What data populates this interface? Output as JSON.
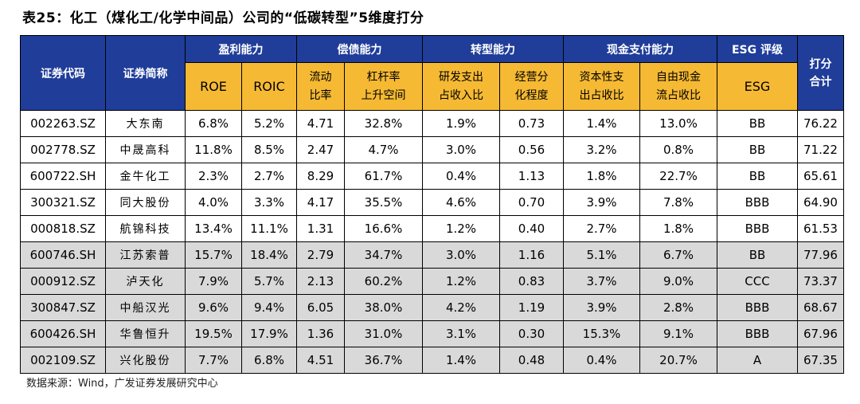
{
  "title": "表25：化工（煤化工/化学中间品）公司的“低碳转型”5维度打分",
  "headers": {
    "code": "证券代码",
    "name": "证券简称",
    "groups": {
      "profit": "盈利能力",
      "debt": "偿债能力",
      "transition": "转型能力",
      "cash": "现金支付能力",
      "esg": "ESG 评级",
      "score_line1": "打分",
      "score_line2": "合计"
    },
    "sub": {
      "roe": "ROE",
      "roic": "ROIC",
      "current_ratio_l1": "流动",
      "current_ratio_l2": "比率",
      "leverage_l1": "杠杆率",
      "leverage_l2": "上升空间",
      "rd_l1": "研发支出",
      "rd_l2": "占收入比",
      "diversification_l1": "经营分",
      "diversification_l2": "化程度",
      "capex_l1": "资本性支",
      "capex_l2": "出占收比",
      "fcf_l1": "自由现金",
      "fcf_l2": "流占收比",
      "esg": "ESG"
    }
  },
  "rows": [
    {
      "code": "002263.SZ",
      "name": "大东南",
      "roe": "6.8%",
      "roic": "5.2%",
      "current": "4.71",
      "leverage": "32.8%",
      "rd": "1.9%",
      "div": "0.73",
      "capex": "1.4%",
      "fcf": "13.0%",
      "esg": "BB",
      "total": "76.22"
    },
    {
      "code": "002778.SZ",
      "name": "中晟高科",
      "roe": "11.8%",
      "roic": "8.5%",
      "current": "2.47",
      "leverage": "4.7%",
      "rd": "3.0%",
      "div": "0.56",
      "capex": "3.2%",
      "fcf": "0.8%",
      "esg": "BB",
      "total": "71.22"
    },
    {
      "code": "600722.SH",
      "name": "金牛化工",
      "roe": "2.3%",
      "roic": "2.7%",
      "current": "8.29",
      "leverage": "61.7%",
      "rd": "0.4%",
      "div": "1.13",
      "capex": "1.8%",
      "fcf": "22.7%",
      "esg": "BB",
      "total": "65.61"
    },
    {
      "code": "300321.SZ",
      "name": "同大股份",
      "roe": "4.0%",
      "roic": "3.3%",
      "current": "4.17",
      "leverage": "35.5%",
      "rd": "4.6%",
      "div": "0.70",
      "capex": "3.9%",
      "fcf": "7.8%",
      "esg": "BBB",
      "total": "64.90"
    },
    {
      "code": "000818.SZ",
      "name": "航锦科技",
      "roe": "13.4%",
      "roic": "11.1%",
      "current": "1.31",
      "leverage": "16.6%",
      "rd": "1.2%",
      "div": "0.40",
      "capex": "2.7%",
      "fcf": "1.8%",
      "esg": "BBB",
      "total": "61.53"
    },
    {
      "code": "600746.SH",
      "name": "江苏索普",
      "roe": "15.7%",
      "roic": "18.4%",
      "current": "2.79",
      "leverage": "34.7%",
      "rd": "3.0%",
      "div": "1.16",
      "capex": "5.1%",
      "fcf": "6.7%",
      "esg": "BB",
      "total": "77.96"
    },
    {
      "code": "000912.SZ",
      "name": "泸天化",
      "roe": "7.9%",
      "roic": "5.7%",
      "current": "2.13",
      "leverage": "60.2%",
      "rd": "1.2%",
      "div": "0.83",
      "capex": "3.7%",
      "fcf": "9.0%",
      "esg": "CCC",
      "total": "73.37"
    },
    {
      "code": "300847.SZ",
      "name": "中船汉光",
      "roe": "9.6%",
      "roic": "9.4%",
      "current": "6.05",
      "leverage": "38.0%",
      "rd": "4.2%",
      "div": "1.19",
      "capex": "3.9%",
      "fcf": "2.8%",
      "esg": "BBB",
      "total": "68.67"
    },
    {
      "code": "600426.SH",
      "name": "华鲁恒升",
      "roe": "19.5%",
      "roic": "17.9%",
      "current": "1.36",
      "leverage": "31.0%",
      "rd": "3.1%",
      "div": "0.30",
      "capex": "15.3%",
      "fcf": "9.1%",
      "esg": "BBB",
      "total": "67.96"
    },
    {
      "code": "002109.SZ",
      "name": "兴化股份",
      "roe": "7.7%",
      "roic": "6.8%",
      "current": "4.51",
      "leverage": "36.7%",
      "rd": "1.4%",
      "div": "0.48",
      "capex": "0.4%",
      "fcf": "20.7%",
      "esg": "A",
      "total": "67.35"
    }
  ],
  "source": "数据来源：Wind，广发证券发展研究中心",
  "colors": {
    "header_bg": "#1f3d99",
    "subheader_bg": "#f5b933",
    "shade": "#d9d9d9"
  }
}
